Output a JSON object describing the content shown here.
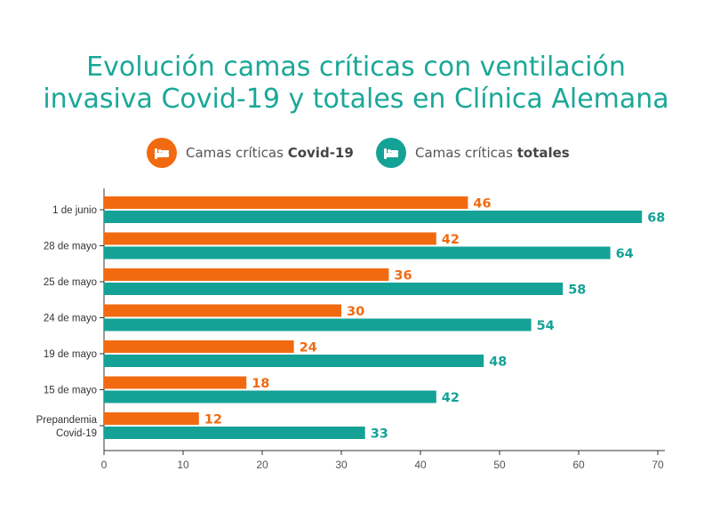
{
  "title_line1": "Evolución camas críticas con ventilación",
  "title_line2": "invasiva Covid-19 y totales en Clínica Alemana",
  "legend": {
    "covid": {
      "prefix": "Camas críticas ",
      "bold": "Covid-19",
      "color": "#f26a10",
      "icon": "bed-icon"
    },
    "total": {
      "prefix": "Camas críticas ",
      "bold": "totales",
      "color": "#15a296",
      "icon": "bed-icon"
    }
  },
  "chart_data": {
    "type": "bar",
    "orientation": "horizontal",
    "title": "Evolución camas críticas con ventilación invasiva Covid-19 y totales en Clínica Alemana",
    "categories": [
      "1 de junio",
      "28 de mayo",
      "25 de mayo",
      "24 de mayo",
      "19 de mayo",
      "15 de mayo",
      "Prepandemia Covid-19"
    ],
    "series": [
      {
        "name": "Camas críticas Covid-19",
        "color": "#f26a10",
        "values": [
          46,
          42,
          36,
          30,
          24,
          18,
          12
        ]
      },
      {
        "name": "Camas críticas totales",
        "color": "#15a296",
        "values": [
          68,
          64,
          58,
          54,
          48,
          42,
          33
        ]
      }
    ],
    "xlim": [
      0,
      70
    ],
    "xticks": [
      0,
      10,
      20,
      30,
      40,
      50,
      60,
      70
    ],
    "grid": false,
    "legend_position": "top"
  }
}
